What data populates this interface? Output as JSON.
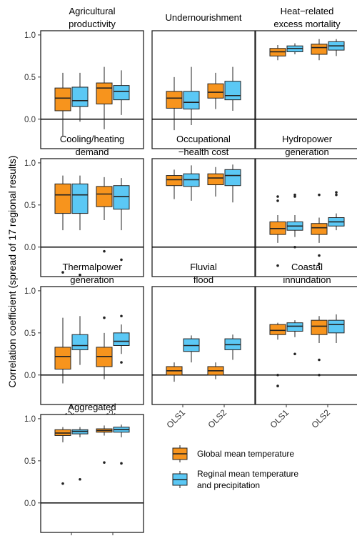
{
  "y_axis_label": "Correlation coefficient (spread of 17 regional results)",
  "colors": {
    "global": "#F7941D",
    "regional": "#5BC8F5",
    "outline": "#222222"
  },
  "legend": {
    "global_label": "Global mean temperature",
    "regional_label_line1": "Reginal mean temperature",
    "regional_label_line2": "and precipitation"
  },
  "chart_data": {
    "type": "boxplot",
    "categories": [
      "OLS1",
      "OLS2"
    ],
    "ylim": [
      -0.35,
      1.05
    ],
    "yticks": [
      "1.0",
      "0.5",
      "0.0"
    ],
    "series_names": [
      "Global mean temperature",
      "Reginal mean temperature and precipitation"
    ],
    "panels": [
      {
        "title": [
          "Agricultural",
          "productivity"
        ],
        "boxes": [
          [
            {
              "min": -0.2,
              "q1": 0.1,
              "med": 0.25,
              "q3": 0.37,
              "max": 0.55,
              "out": []
            },
            {
              "min": -0.03,
              "q1": 0.15,
              "med": 0.22,
              "q3": 0.38,
              "max": 0.55,
              "out": []
            }
          ],
          [
            {
              "min": -0.12,
              "q1": 0.18,
              "med": 0.37,
              "q3": 0.43,
              "max": 0.62,
              "out": []
            },
            {
              "min": 0.05,
              "q1": 0.23,
              "med": 0.33,
              "q3": 0.4,
              "max": 0.58,
              "out": []
            }
          ]
        ]
      },
      {
        "title": [
          "Undernourishment"
        ],
        "boxes": [
          [
            {
              "min": -0.13,
              "q1": 0.13,
              "med": 0.25,
              "q3": 0.33,
              "max": 0.5,
              "out": []
            },
            {
              "min": -0.07,
              "q1": 0.12,
              "med": 0.2,
              "q3": 0.33,
              "max": 0.62,
              "out": []
            }
          ],
          [
            {
              "min": 0.12,
              "q1": 0.25,
              "med": 0.32,
              "q3": 0.42,
              "max": 0.55,
              "out": []
            },
            {
              "min": 0.1,
              "q1": 0.23,
              "med": 0.28,
              "q3": 0.45,
              "max": 0.62,
              "out": []
            }
          ]
        ]
      },
      {
        "title": [
          "Heat−related",
          "excess mortality"
        ],
        "boxes": [
          [
            {
              "min": 0.7,
              "q1": 0.75,
              "med": 0.8,
              "q3": 0.84,
              "max": 0.88,
              "out": []
            },
            {
              "min": 0.77,
              "q1": 0.8,
              "med": 0.84,
              "q3": 0.87,
              "max": 0.9,
              "out": []
            }
          ],
          [
            {
              "min": 0.7,
              "q1": 0.77,
              "med": 0.85,
              "q3": 0.89,
              "max": 0.95,
              "out": []
            },
            {
              "min": 0.75,
              "q1": 0.82,
              "med": 0.87,
              "q3": 0.92,
              "max": 0.95,
              "out": []
            }
          ]
        ]
      },
      {
        "title": [
          "Cooling/heating",
          "demand"
        ],
        "boxes": [
          [
            {
              "min": 0.2,
              "q1": 0.4,
              "med": 0.62,
              "q3": 0.75,
              "max": 0.85,
              "out": [
                -0.3
              ]
            },
            {
              "min": 0.2,
              "q1": 0.4,
              "med": 0.62,
              "q3": 0.75,
              "max": 0.85,
              "out": [
                -0.33
              ]
            }
          ],
          [
            {
              "min": 0.32,
              "q1": 0.48,
              "med": 0.63,
              "q3": 0.72,
              "max": 0.83,
              "out": [
                -0.05
              ]
            },
            {
              "min": 0.2,
              "q1": 0.45,
              "med": 0.6,
              "q3": 0.73,
              "max": 0.82,
              "out": [
                -0.15
              ]
            }
          ]
        ]
      },
      {
        "title": [
          "Occupational",
          "−health cost"
        ],
        "boxes": [
          [
            {
              "min": 0.57,
              "q1": 0.73,
              "med": 0.8,
              "q3": 0.85,
              "max": 0.92,
              "out": []
            },
            {
              "min": 0.55,
              "q1": 0.72,
              "med": 0.8,
              "q3": 0.87,
              "max": 0.97,
              "out": []
            }
          ],
          [
            {
              "min": 0.6,
              "q1": 0.74,
              "med": 0.82,
              "q3": 0.87,
              "max": 0.95,
              "out": []
            },
            {
              "min": 0.53,
              "q1": 0.73,
              "med": 0.85,
              "q3": 0.92,
              "max": 0.98,
              "out": []
            }
          ]
        ]
      },
      {
        "title": [
          "Hydropower",
          "generation"
        ],
        "boxes": [
          [
            {
              "min": 0.05,
              "q1": 0.15,
              "med": 0.22,
              "q3": 0.3,
              "max": 0.38,
              "out": [
                0.6,
                0.55,
                -0.22
              ]
            },
            {
              "min": 0.12,
              "q1": 0.2,
              "med": 0.25,
              "q3": 0.3,
              "max": 0.38,
              "out": [
                0.62,
                0.6,
                0.0
              ]
            }
          ],
          [
            {
              "min": 0.05,
              "q1": 0.15,
              "med": 0.23,
              "q3": 0.28,
              "max": 0.35,
              "out": [
                0.62,
                -0.1,
                -0.2
              ]
            },
            {
              "min": 0.2,
              "q1": 0.25,
              "med": 0.3,
              "q3": 0.35,
              "max": 0.4,
              "out": [
                0.65,
                0.62
              ]
            }
          ]
        ]
      },
      {
        "title": [
          "Thermalpower",
          "generation"
        ],
        "boxes": [
          [
            {
              "min": -0.1,
              "q1": 0.07,
              "med": 0.22,
              "q3": 0.33,
              "max": 0.68,
              "out": []
            },
            {
              "min": 0.12,
              "q1": 0.3,
              "med": 0.35,
              "q3": 0.48,
              "max": 0.7,
              "out": []
            }
          ],
          [
            {
              "min": -0.05,
              "q1": 0.1,
              "med": 0.22,
              "q3": 0.33,
              "max": 0.5,
              "out": [
                0.68
              ]
            },
            {
              "min": 0.25,
              "q1": 0.35,
              "med": 0.4,
              "q3": 0.5,
              "max": 0.6,
              "out": [
                0.7,
                0.15
              ]
            }
          ]
        ]
      },
      {
        "title": [
          "Fluvial",
          "flood"
        ],
        "boxes": [
          [
            {
              "min": -0.08,
              "q1": 0.0,
              "med": 0.05,
              "q3": 0.1,
              "max": 0.15,
              "out": []
            },
            {
              "min": 0.15,
              "q1": 0.28,
              "med": 0.35,
              "q3": 0.43,
              "max": 0.47,
              "out": []
            }
          ],
          [
            {
              "min": -0.05,
              "q1": 0.0,
              "med": 0.05,
              "q3": 0.1,
              "max": 0.15,
              "out": []
            },
            {
              "min": 0.18,
              "q1": 0.3,
              "med": 0.36,
              "q3": 0.43,
              "max": 0.48,
              "out": []
            }
          ]
        ]
      },
      {
        "title": [
          "Coastal",
          "innundation"
        ],
        "boxes": [
          [
            {
              "min": 0.42,
              "q1": 0.48,
              "med": 0.53,
              "q3": 0.6,
              "max": 0.62,
              "out": [
                0.0,
                -0.13
              ]
            },
            {
              "min": 0.45,
              "q1": 0.52,
              "med": 0.58,
              "q3": 0.62,
              "max": 0.65,
              "out": [
                0.25
              ]
            }
          ],
          [
            {
              "min": 0.38,
              "q1": 0.48,
              "med": 0.58,
              "q3": 0.65,
              "max": 0.7,
              "out": [
                0.18,
                0.0
              ]
            },
            {
              "min": 0.38,
              "q1": 0.5,
              "med": 0.6,
              "q3": 0.65,
              "max": 0.72,
              "out": []
            }
          ]
        ]
      },
      {
        "title": [
          "Aggregated"
        ],
        "boxes": [
          [
            {
              "min": 0.72,
              "q1": 0.8,
              "med": 0.83,
              "q3": 0.87,
              "max": 0.9,
              "out": [
                0.23
              ]
            },
            {
              "min": 0.78,
              "q1": 0.82,
              "med": 0.85,
              "q3": 0.87,
              "max": 0.9,
              "out": [
                0.28
              ]
            }
          ],
          [
            {
              "min": 0.8,
              "q1": 0.84,
              "med": 0.86,
              "q3": 0.88,
              "max": 0.92,
              "out": [
                0.48
              ]
            },
            {
              "min": 0.78,
              "q1": 0.84,
              "med": 0.87,
              "q3": 0.9,
              "max": 0.93,
              "out": [
                0.47
              ]
            }
          ]
        ]
      }
    ]
  }
}
